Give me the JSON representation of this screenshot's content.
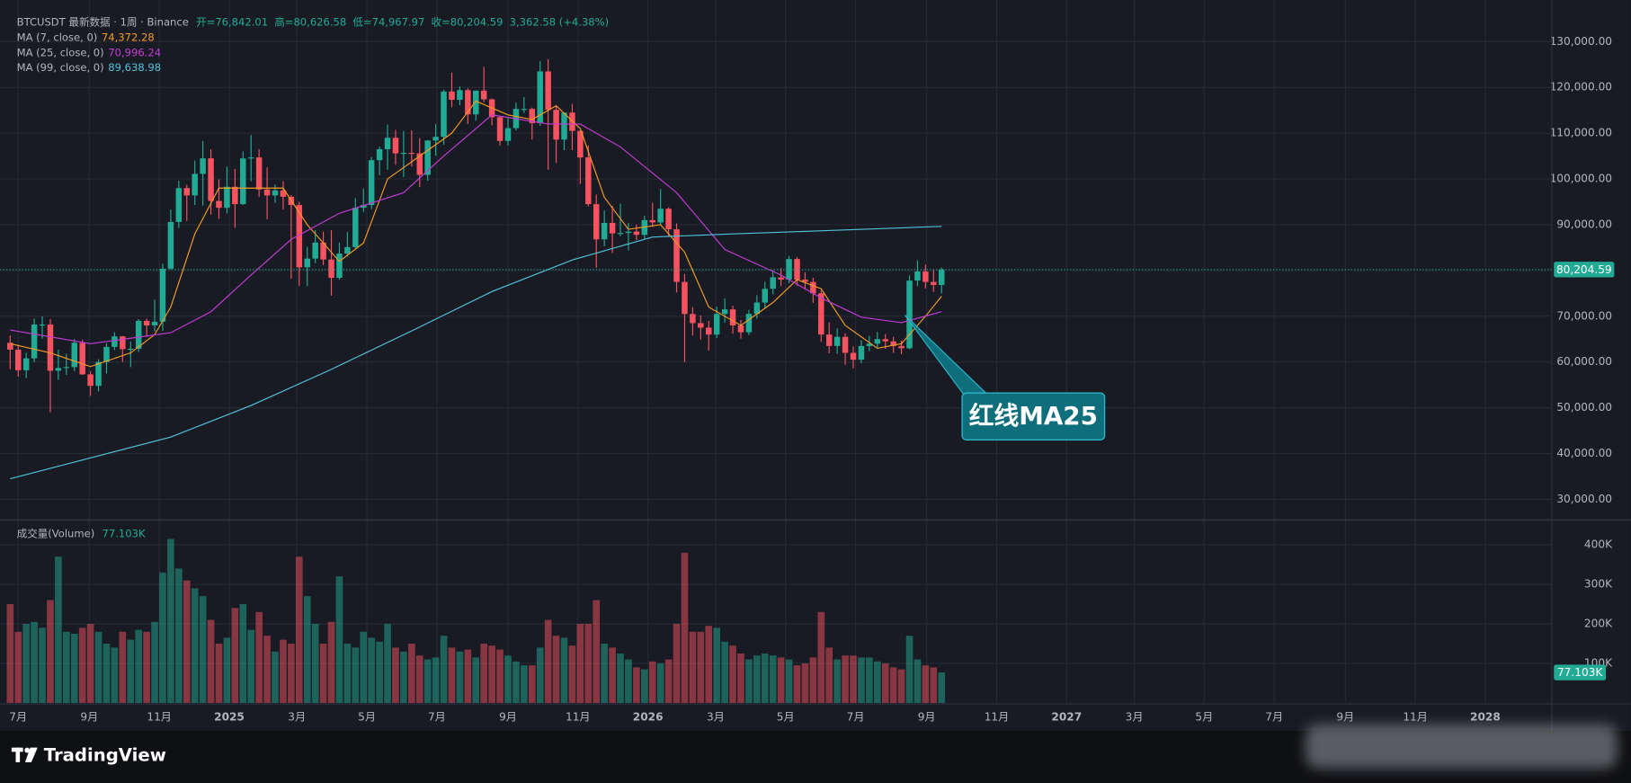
{
  "brand": "TradingView",
  "chart_data": {
    "type": "candlestick",
    "header_title": "BTCUSDT 最新数据 · 1周 · Binance",
    "ohlc_text": [
      "开=76,842.01",
      "高=80,626.58",
      "低=74,967.97",
      "收=80,204.59"
    ],
    "change_text": "3,362.58 (+4.38%)",
    "up_color": "#22ab94",
    "down_color": "#f7525f",
    "open": [
      64200,
      62700,
      58200,
      60800,
      68200,
      68200,
      58100,
      58700,
      58900,
      64200,
      57300,
      54800,
      60000,
      63300,
      65600,
      62800,
      62900,
      69000,
      68000,
      68800,
      80400,
      90600,
      98000,
      96400,
      101100,
      104500,
      95200,
      93700,
      98300,
      94500,
      104500,
      104700,
      97700,
      96400,
      97500,
      96100,
      94300,
      80700,
      82600,
      86100,
      82400,
      78400,
      83700,
      85100,
      93700,
      94300,
      104100,
      106500,
      109000,
      105600,
      105700,
      105600,
      100900,
      108400,
      109200,
      119100,
      117300,
      119400,
      114100,
      119300,
      117400,
      113500,
      108300,
      111100,
      115300,
      115300,
      112200,
      123500,
      115100,
      108600,
      114500,
      110500,
      104700,
      94500,
      86800,
      90400,
      88100,
      88200,
      88500,
      87800,
      91000,
      90500,
      93500,
      89000,
      77500,
      70500,
      68500,
      67500,
      66000,
      70500,
      71500,
      68000,
      66500,
      70500,
      73000,
      76000,
      78500,
      78000,
      82500,
      78000,
      77500,
      75000,
      66000,
      63500,
      65500,
      62000,
      60500,
      63500,
      64000,
      65000,
      64500,
      63500,
      63000,
      77800,
      79800,
      77500,
      76842.01
    ],
    "high": [
      65800,
      63800,
      62000,
      69500,
      70000,
      69400,
      62700,
      61800,
      65000,
      64900,
      58000,
      60600,
      64100,
      66500,
      65700,
      64500,
      69400,
      69500,
      73600,
      81500,
      93300,
      99600,
      98700,
      104000,
      108300,
      106500,
      99900,
      102700,
      102200,
      106000,
      109600,
      106500,
      102500,
      98800,
      99500,
      96500,
      95000,
      85200,
      88800,
      88500,
      88800,
      86100,
      88400,
      95800,
      97900,
      104800,
      107100,
      111900,
      110700,
      110500,
      110600,
      108900,
      108500,
      112000,
      119500,
      123200,
      120200,
      119800,
      119300,
      124500,
      117600,
      113700,
      113400,
      116700,
      117900,
      115600,
      125700,
      126200,
      115900,
      114500,
      116400,
      110600,
      107300,
      96600,
      93100,
      94100,
      94600,
      90400,
      90000,
      92000,
      94800,
      97800,
      93800,
      90300,
      79200,
      72000,
      70200,
      69000,
      72100,
      73900,
      72300,
      69200,
      71400,
      74600,
      77500,
      80100,
      80500,
      83200,
      82900,
      79600,
      78400,
      75600,
      68700,
      67400,
      66300,
      63400,
      64800,
      65700,
      66600,
      66100,
      65500,
      64700,
      78900,
      82200,
      81300,
      80100,
      80626.58
    ],
    "low": [
      58400,
      56800,
      56500,
      60000,
      65100,
      49000,
      56100,
      57200,
      58000,
      57200,
      52600,
      53600,
      57500,
      62600,
      60000,
      58900,
      62200,
      65500,
      66700,
      66800,
      80200,
      89300,
      90800,
      94300,
      94200,
      92200,
      91300,
      92500,
      89300,
      94300,
      99500,
      96100,
      91200,
      94800,
      93300,
      78200,
      76600,
      76600,
      81600,
      81200,
      74500,
      78000,
      83000,
      84600,
      92800,
      93400,
      100800,
      102000,
      103100,
      100400,
      102700,
      98200,
      99600,
      105100,
      107500,
      115700,
      116100,
      112000,
      112700,
      116800,
      111700,
      107300,
      107300,
      110600,
      114400,
      108600,
      111600,
      102000,
      103500,
      106300,
      106300,
      98900,
      94000,
      80600,
      85300,
      83800,
      87500,
      84400,
      86600,
      86900,
      89500,
      89900,
      87500,
      75200,
      60000,
      65800,
      64900,
      62500,
      65200,
      68600,
      66200,
      65100,
      65900,
      69500,
      71600,
      74800,
      76600,
      77200,
      76700,
      75800,
      72900,
      64400,
      61900,
      61800,
      59400,
      58600,
      59700,
      62400,
      63200,
      62900,
      62000,
      61700,
      62800,
      76600,
      76100,
      75300,
      74967.97
    ],
    "close": [
      62700,
      58200,
      60800,
      68200,
      68200,
      58100,
      58700,
      58900,
      64200,
      57300,
      54800,
      60000,
      63300,
      65600,
      62800,
      62900,
      69000,
      68000,
      68800,
      80400,
      90600,
      98000,
      96400,
      101100,
      104500,
      95200,
      93700,
      98300,
      94500,
      104500,
      104700,
      97700,
      96400,
      97500,
      96100,
      94300,
      80700,
      82600,
      86100,
      82400,
      78400,
      83700,
      85100,
      93700,
      94300,
      104100,
      106500,
      109000,
      105600,
      105700,
      105600,
      100900,
      108400,
      109200,
      119100,
      117300,
      119400,
      114100,
      119300,
      117400,
      113500,
      108300,
      111100,
      115300,
      115300,
      112200,
      123500,
      115100,
      108600,
      114500,
      110500,
      104700,
      94500,
      86800,
      90400,
      88100,
      88200,
      88500,
      87800,
      91000,
      90500,
      93500,
      89000,
      77500,
      70500,
      68500,
      67500,
      66000,
      70500,
      71500,
      68000,
      66500,
      70500,
      73000,
      76000,
      78500,
      78000,
      82500,
      78000,
      77500,
      75000,
      66000,
      63500,
      65500,
      62000,
      60500,
      63500,
      64000,
      65000,
      64500,
      63500,
      63000,
      77800,
      79800,
      77500,
      76842.01,
      80204.59
    ],
    "volume": [
      250000,
      180000,
      200000,
      205000,
      190000,
      260000,
      370000,
      180000,
      175000,
      190000,
      200000,
      180000,
      150000,
      140000,
      180000,
      160000,
      185000,
      180000,
      205000,
      330000,
      415000,
      340000,
      310000,
      290000,
      270000,
      210000,
      150000,
      165000,
      240000,
      250000,
      185000,
      230000,
      170000,
      130000,
      160000,
      150000,
      370000,
      270000,
      200000,
      150000,
      205000,
      320000,
      150000,
      140000,
      180000,
      165000,
      155000,
      200000,
      140000,
      130000,
      150000,
      120000,
      110000,
      115000,
      170000,
      140000,
      130000,
      135000,
      115000,
      150000,
      145000,
      135000,
      120000,
      105000,
      95000,
      95000,
      140000,
      210000,
      170000,
      165000,
      145000,
      200000,
      200000,
      260000,
      150000,
      140000,
      125000,
      110000,
      90000,
      85000,
      105000,
      100000,
      110000,
      200000,
      380000,
      180000,
      180000,
      195000,
      190000,
      155000,
      145000,
      125000,
      110000,
      120000,
      125000,
      120000,
      115000,
      110000,
      95000,
      100000,
      115000,
      230000,
      140000,
      110000,
      120000,
      120000,
      115000,
      115000,
      105000,
      100000,
      90000,
      85000,
      170000,
      110000,
      95000,
      90000,
      77103
    ],
    "xlim": [
      -1.25,
      192
    ],
    "xticks": [
      {
        "value": 1,
        "label": "7月"
      },
      {
        "value": 9.86,
        "label": "9月"
      },
      {
        "value": 18.57,
        "label": "11月"
      },
      {
        "value": 27.29,
        "label": "2025"
      },
      {
        "value": 35.71,
        "label": "3月"
      },
      {
        "value": 44.43,
        "label": "5月"
      },
      {
        "value": 53.14,
        "label": "7月"
      },
      {
        "value": 62,
        "label": "9月"
      },
      {
        "value": 70.71,
        "label": "11月"
      },
      {
        "value": 79.43,
        "label": "2026"
      },
      {
        "value": 87.86,
        "label": "3月"
      },
      {
        "value": 96.57,
        "label": "5月"
      },
      {
        "value": 105.29,
        "label": "7月"
      },
      {
        "value": 114.14,
        "label": "9月"
      },
      {
        "value": 122.86,
        "label": "11月"
      },
      {
        "value": 131.57,
        "label": "2027"
      },
      {
        "value": 140,
        "label": "3月"
      },
      {
        "value": 148.71,
        "label": "5月"
      },
      {
        "value": 157.43,
        "label": "7月"
      },
      {
        "value": 166.29,
        "label": "9月"
      },
      {
        "value": 175,
        "label": "11月"
      },
      {
        "value": 183.71,
        "label": "2028"
      }
    ],
    "ylim": [
      25500,
      139100
    ],
    "yticks": [
      {
        "value": 30000,
        "label": "30,000.00"
      },
      {
        "value": 40000,
        "label": "40,000.00"
      },
      {
        "value": 50000,
        "label": "50,000.00"
      },
      {
        "value": 60000,
        "label": "60,000.00"
      },
      {
        "value": 70000,
        "label": "70,000.00"
      },
      {
        "value": 80000,
        "label": "80,000.00"
      },
      {
        "value": 90000,
        "label": "90,000.00"
      },
      {
        "value": 100000,
        "label": "100,000.00"
      },
      {
        "value": 110000,
        "label": "110,000.00"
      },
      {
        "value": 120000,
        "label": "120,000.00"
      },
      {
        "value": 130000,
        "label": "130,000.00"
      }
    ],
    "volume_title": "成交量(Volume)",
    "volume_last_label": "77.103K",
    "volume_ylim": [
      0,
      463000
    ],
    "volume_yticks": [
      {
        "value": 100000,
        "label": "100K"
      },
      {
        "value": 200000,
        "label": "200K"
      },
      {
        "value": 300000,
        "label": "300K"
      },
      {
        "value": 400000,
        "label": "400K"
      }
    ],
    "last_price_label": "80,204.59",
    "moving_averages": [
      {
        "name": "MA (7, close, 0)",
        "color": "#f59a23",
        "last_label": "74,372.28",
        "x": [
          0,
          5,
          10,
          15,
          18,
          20,
          23,
          26,
          30,
          34,
          37,
          41,
          44,
          47,
          51,
          55,
          58,
          62,
          65,
          68,
          71,
          74,
          77,
          81,
          84,
          87,
          91,
          95,
          98,
          101,
          104,
          108,
          111,
          114,
          116
        ],
        "values": [
          64000,
          62000,
          59000,
          62000,
          66000,
          72000,
          88000,
          98000,
          98000,
          98000,
          90000,
          82000,
          86000,
          100000,
          105000,
          110000,
          117000,
          114000,
          113000,
          116000,
          111000,
          96000,
          89000,
          90000,
          84000,
          72000,
          68000,
          73000,
          78000,
          76000,
          68000,
          63000,
          64000,
          70000,
          74372.28
        ]
      },
      {
        "name": "MA (25, close, 0)",
        "color": "#c23bd4",
        "last_label": "70,996.24",
        "x": [
          0,
          10,
          20,
          25,
          30,
          35,
          41,
          49,
          54,
          60,
          67,
          71,
          76,
          83,
          89,
          96,
          101,
          106,
          111,
          116
        ],
        "values": [
          67000,
          64000,
          66400,
          71000,
          79000,
          86800,
          92500,
          97000,
          105000,
          114000,
          112000,
          112000,
          107000,
          97000,
          84600,
          79000,
          74000,
          69800,
          68600,
          70996.24
        ]
      },
      {
        "name": "MA (99, close, 0)",
        "color": "#4fc3d9",
        "last_label": "89,638.98",
        "x": [
          0,
          20,
          30,
          40,
          50,
          60,
          70,
          80,
          90,
          100,
          116
        ],
        "values": [
          34500,
          43600,
          50500,
          58400,
          66800,
          75400,
          82300,
          87300,
          88000,
          88600,
          89638.98
        ]
      }
    ],
    "annotation": "红线MA25"
  }
}
